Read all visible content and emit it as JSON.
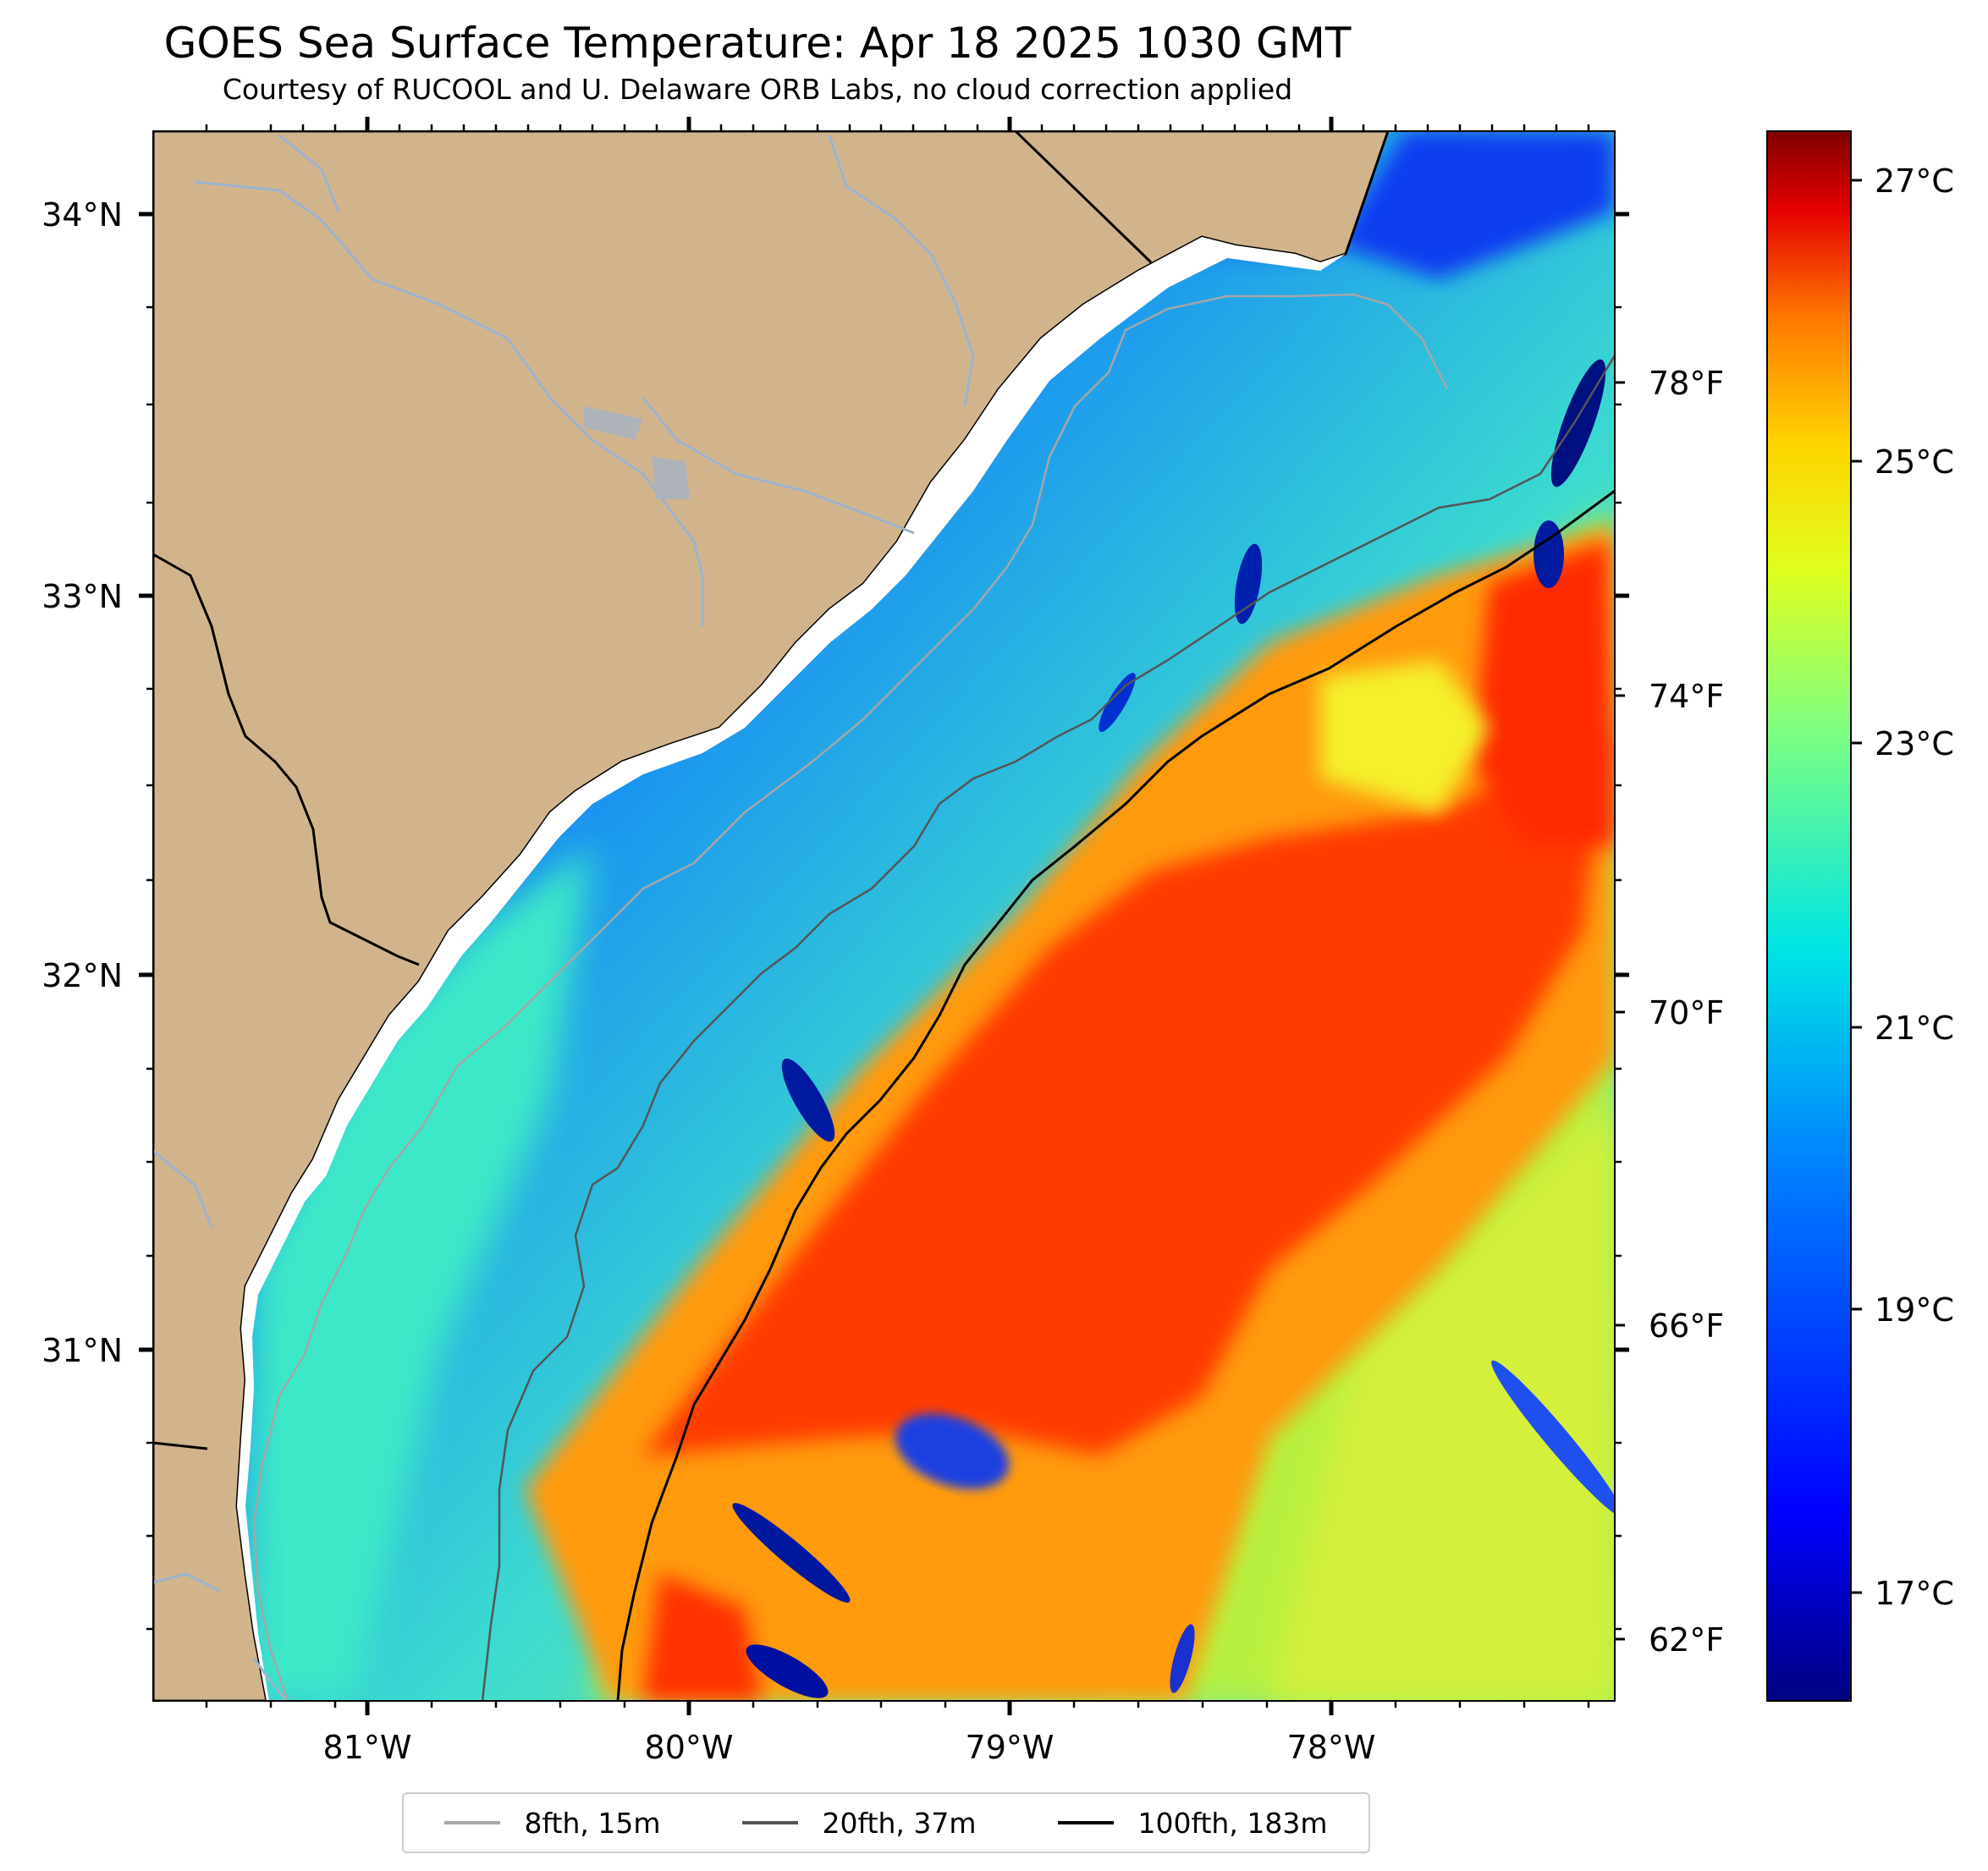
{
  "title": "GOES Sea Surface Temperature: Apr 18 2025 1030 GMT",
  "subtitle": "Courtesy of RUCOOL and U. Delaware ORB Labs, no cloud correction applied",
  "map": {
    "region": "South Carolina / Georgia coast",
    "lat_range": [
      30.09,
      34.22
    ],
    "lon_range": [
      -81.67,
      -77.12
    ],
    "lat_ticks": [
      "34°N",
      "33°N",
      "32°N",
      "31°N"
    ],
    "lon_ticks": [
      "81°W",
      "80°W",
      "79°W",
      "78°W"
    ],
    "land_color": "#D2B48C",
    "river_color": "#9db2cf",
    "colormap": "jet"
  },
  "colorbar": {
    "celsius_ticks": [
      "27°C",
      "25°C",
      "23°C",
      "21°C",
      "19°C",
      "17°C"
    ],
    "fahrenheit_ticks": [
      "78°F",
      "74°F",
      "70°F",
      "66°F",
      "62°F"
    ],
    "range_c": [
      16.2,
      27.4
    ]
  },
  "legend": [
    {
      "label": "8fth, 15m",
      "color": "#a6a6a6"
    },
    {
      "label": "20fth, 37m",
      "color": "#555555"
    },
    {
      "label": "100fth, 183m",
      "color": "#000000"
    }
  ]
}
